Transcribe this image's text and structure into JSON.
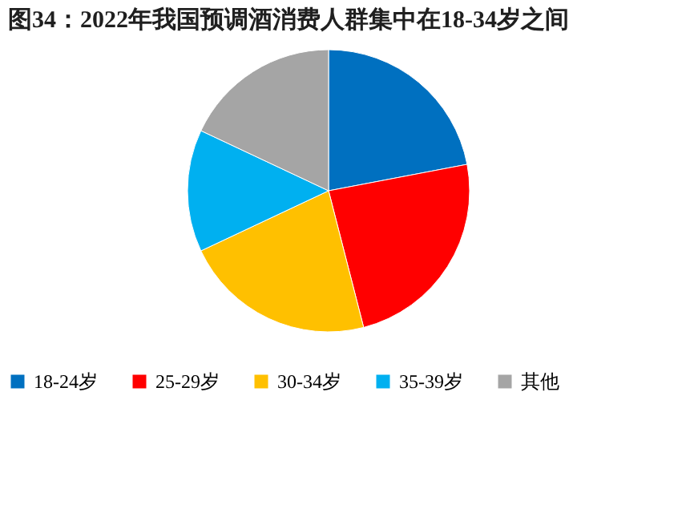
{
  "chart_data": {
    "type": "pie",
    "title": "图34：2022年我国预调酒消费人群集中在18-34岁之间",
    "categories": [
      "18-24岁",
      "25-29岁",
      "30-34岁",
      "35-39岁",
      "其他"
    ],
    "values": [
      22,
      24,
      22,
      14,
      18
    ],
    "colors": [
      "#0070c0",
      "#ff0000",
      "#ffc000",
      "#00b0f0",
      "#a5a5a5"
    ],
    "legend": "bottom"
  }
}
